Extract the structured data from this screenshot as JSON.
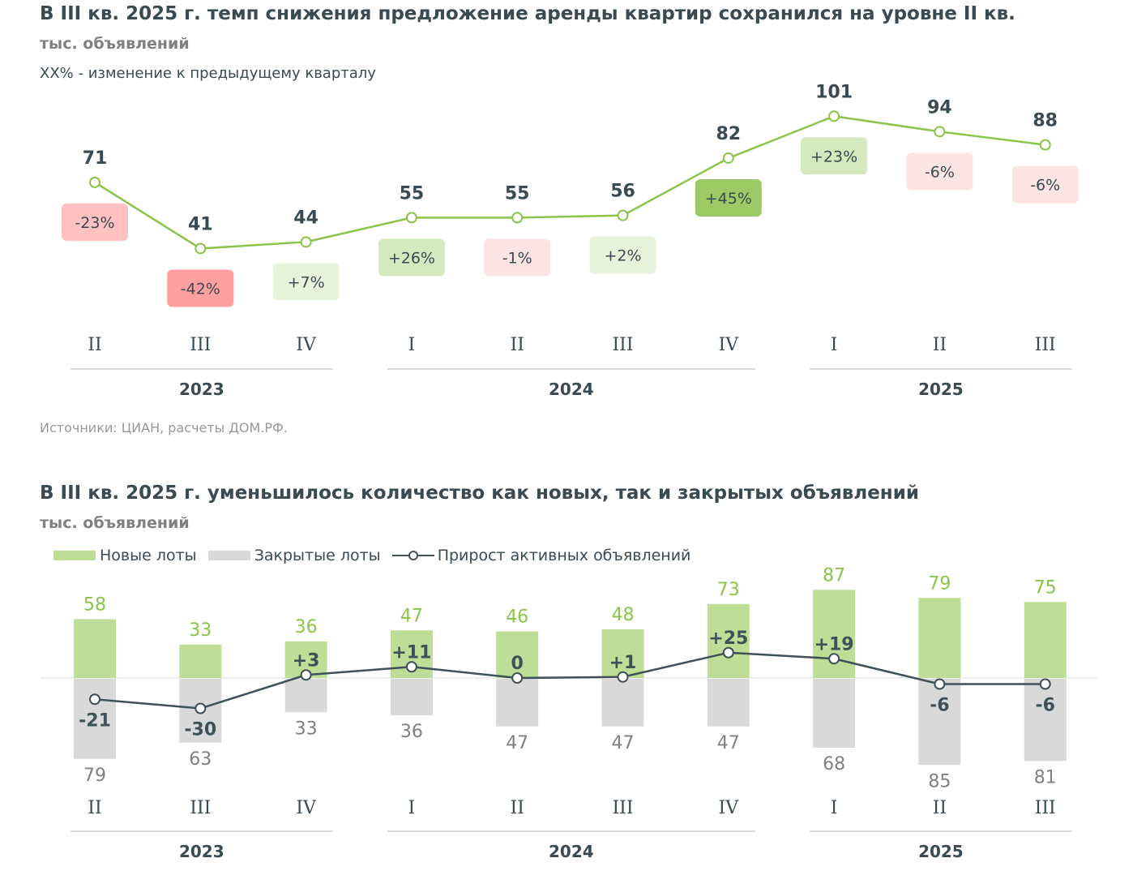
{
  "colors": {
    "line": "#8cc34a",
    "text": "#3a4a52",
    "new": "#bedd96",
    "closed": "#d9d9d9",
    "net": "#3f5058",
    "green_label": "#8cc34a",
    "gray_label": "#808080",
    "badge": {
      "strong_neg": "#ff9f9f",
      "neg": "#ffc1c1",
      "weak_neg": "#fde4e4",
      "weak_pos": "#e8f3dc",
      "pos": "#d4e9bd",
      "strong_pos": "#9cca64"
    }
  },
  "chart_data": [
    {
      "type": "line",
      "title": "В III кв. 2025 г. темп снижения предложение аренды квартир сохранился на уровне II кв.",
      "unit": "тыс. объявлений",
      "note": "XX% - изменение к предыдущему кварталу",
      "source": "Источники: ЦИАН, расчеты ДОМ.РФ.",
      "categories": [
        "II",
        "III",
        "IV",
        "I",
        "II",
        "III",
        "IV",
        "I",
        "II",
        "III"
      ],
      "years": [
        {
          "label": "2023",
          "span": 3
        },
        {
          "label": "2024",
          "span": 4
        },
        {
          "label": "2025",
          "span": 3
        }
      ],
      "values": [
        71,
        41,
        44,
        55,
        55,
        56,
        82,
        101,
        94,
        88
      ],
      "changes": [
        "-23%",
        "-42%",
        "+7%",
        "+26%",
        "-1%",
        "+2%",
        "+45%",
        "+23%",
        "-6%",
        "-6%"
      ],
      "change_levels": [
        "neg",
        "strong_neg",
        "weak_pos",
        "pos",
        "weak_neg",
        "weak_pos",
        "strong_pos",
        "pos",
        "weak_neg",
        "weak_neg"
      ]
    },
    {
      "type": "bar",
      "title": "В III кв. 2025 г. уменьшилось количество как новых, так и закрытых объявлений",
      "unit": "тыс. объявлений",
      "legend": [
        "Новые лоты",
        "Закрытые лоты",
        "Прирост активных объявлений"
      ],
      "legend_position": "top-left",
      "categories": [
        "II",
        "III",
        "IV",
        "I",
        "II",
        "III",
        "IV",
        "I",
        "II",
        "III"
      ],
      "years": [
        {
          "label": "2023",
          "span": 3
        },
        {
          "label": "2024",
          "span": 4
        },
        {
          "label": "2025",
          "span": 3
        }
      ],
      "series": [
        {
          "name": "Новые лоты",
          "values": [
            58,
            33,
            36,
            47,
            46,
            48,
            73,
            87,
            79,
            75
          ]
        },
        {
          "name": "Закрытые лоты",
          "values": [
            79,
            63,
            33,
            36,
            47,
            47,
            47,
            68,
            85,
            81
          ]
        },
        {
          "name": "Прирост активных объявлений",
          "values": [
            -21,
            -30,
            3,
            11,
            0,
            1,
            25,
            19,
            -6,
            -6
          ],
          "labels": [
            "-21",
            "-30",
            "+3",
            "+11",
            "0",
            "+1",
            "+25",
            "+19",
            "-6",
            "-6"
          ]
        }
      ]
    }
  ]
}
